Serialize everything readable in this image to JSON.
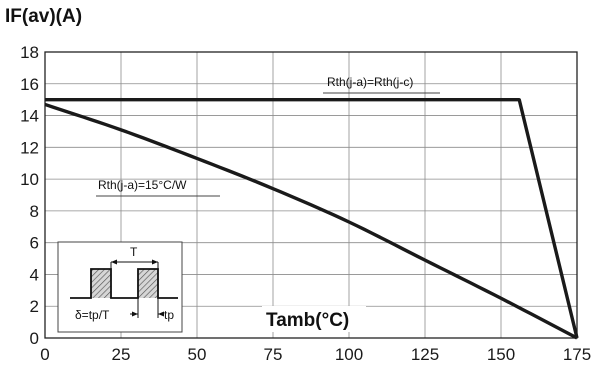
{
  "chart_data": {
    "type": "line",
    "ylabel": "IF(av)(A)",
    "xlabel": "Tamb(°C)",
    "xlim": [
      0,
      175
    ],
    "ylim": [
      0,
      18
    ],
    "xticks": [
      "0",
      "25",
      "50",
      "75",
      "100",
      "125",
      "150",
      "175"
    ],
    "yticks": [
      "0",
      "2",
      "4",
      "6",
      "8",
      "10",
      "12",
      "14",
      "16",
      "18"
    ],
    "grid": true,
    "series": [
      {
        "name": "Rth(j-a)=Rth(j-c)",
        "x": [
          0,
          156,
          175
        ],
        "y": [
          15,
          15,
          0
        ]
      },
      {
        "name": "Rth(j-a)=15°C/W",
        "x": [
          0,
          25,
          50,
          75,
          100,
          125,
          150,
          175
        ],
        "y": [
          14.7,
          13.1,
          11.3,
          9.4,
          7.3,
          4.9,
          2.5,
          0
        ]
      }
    ],
    "inset": {
      "period_label": "T",
      "duty_label": "δ=tp/T",
      "pulse_label": "tp"
    }
  }
}
